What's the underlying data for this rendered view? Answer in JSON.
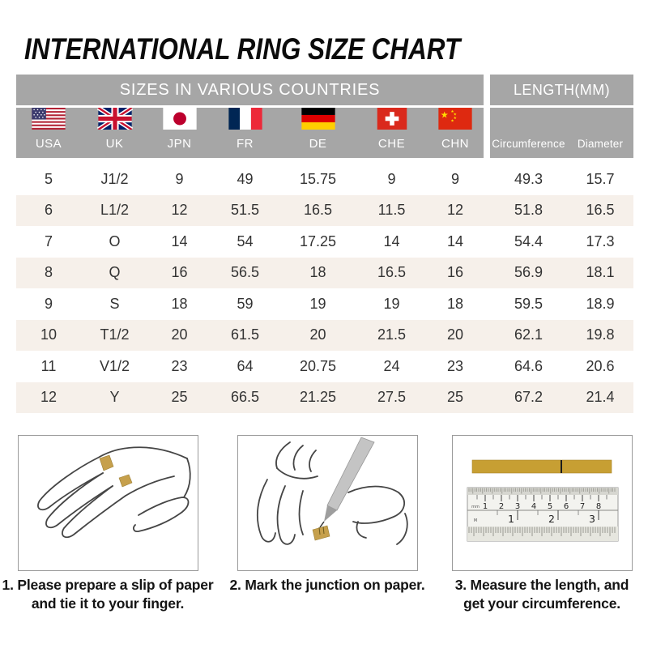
{
  "title": "INTERNATIONAL RING SIZE CHART",
  "table": {
    "group_headers": [
      {
        "label": "SIZES IN VARIOUS COUNTRIES"
      },
      {
        "label": "LENGTH(MM)"
      }
    ],
    "countries": [
      {
        "code": "usa",
        "label": "USA"
      },
      {
        "code": "uk",
        "label": "UK"
      },
      {
        "code": "jpn",
        "label": "JPN"
      },
      {
        "code": "fr",
        "label": "FR"
      },
      {
        "code": "de",
        "label": "DE"
      },
      {
        "code": "che",
        "label": "CHE"
      },
      {
        "code": "chn",
        "label": "CHN"
      }
    ],
    "length_columns": [
      "Circumference",
      "Diameter"
    ]
  },
  "steps": [
    {
      "name": "prepare-paper-slip",
      "lines": [
        "1. Please prepare a slip of paper",
        "and tie it to your finger."
      ]
    },
    {
      "name": "mark-junction",
      "lines": [
        "2. Mark the junction on paper."
      ]
    },
    {
      "name": "measure-length",
      "lines": [
        "3. Measure the length, and",
        "get your circumference."
      ]
    }
  ],
  "ruler": {
    "unit_top": "mm",
    "unit_bottom": "M",
    "cm_numbers": [
      "1",
      "2",
      "3",
      "4",
      "5",
      "6",
      "7",
      "8"
    ],
    "inch_numbers": [
      "1",
      "2",
      "3"
    ]
  },
  "colors": {
    "header_gray": "#a6a6a6",
    "row_alt": "#f6f0ea",
    "paper_strip": "#c79f33",
    "text": "#333333"
  },
  "chart_data": {
    "type": "table",
    "title": "INTERNATIONAL RING SIZE CHART",
    "column_groups": [
      {
        "label": "SIZES IN VARIOUS COUNTRIES",
        "span": 7
      },
      {
        "label": "LENGTH(MM)",
        "span": 2
      }
    ],
    "columns": [
      "USA",
      "UK",
      "JPN",
      "FR",
      "DE",
      "CHE",
      "CHN",
      "Circumference",
      "Diameter"
    ],
    "rows": [
      [
        "5",
        "J1/2",
        "9",
        "49",
        "15.75",
        "9",
        "9",
        "49.3",
        "15.7"
      ],
      [
        "6",
        "L1/2",
        "12",
        "51.5",
        "16.5",
        "11.5",
        "12",
        "51.8",
        "16.5"
      ],
      [
        "7",
        "O",
        "14",
        "54",
        "17.25",
        "14",
        "14",
        "54.4",
        "17.3"
      ],
      [
        "8",
        "Q",
        "16",
        "56.5",
        "18",
        "16.5",
        "16",
        "56.9",
        "18.1"
      ],
      [
        "9",
        "S",
        "18",
        "59",
        "19",
        "19",
        "18",
        "59.5",
        "18.9"
      ],
      [
        "10",
        "T1/2",
        "20",
        "61.5",
        "20",
        "21.5",
        "20",
        "62.1",
        "19.8"
      ],
      [
        "11",
        "V1/2",
        "23",
        "64",
        "20.75",
        "24",
        "23",
        "64.6",
        "20.6"
      ],
      [
        "12",
        "Y",
        "25",
        "66.5",
        "21.25",
        "27.5",
        "25",
        "67.2",
        "21.4"
      ]
    ]
  }
}
